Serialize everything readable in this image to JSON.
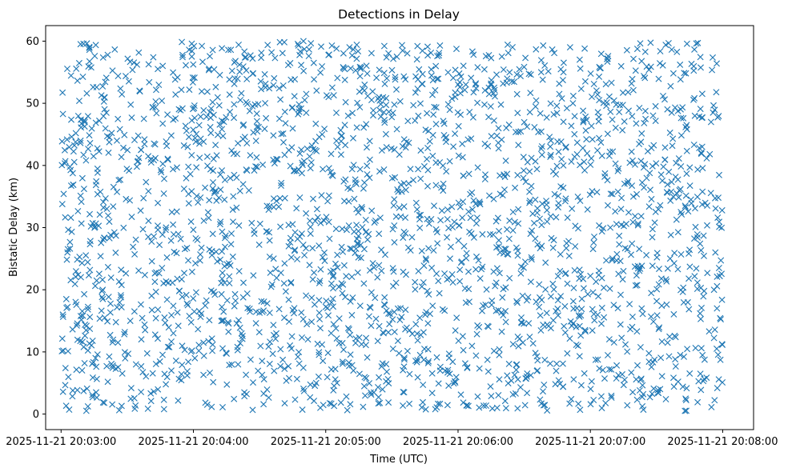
{
  "chart_data": {
    "type": "scatter",
    "title": "Detections in Delay",
    "xlabel": "Time (UTC)",
    "ylabel": "Bistatic Delay (km)",
    "x_ticks": [
      "2025-11-21 20:03:00",
      "2025-11-21 20:04:00",
      "2025-11-21 20:05:00",
      "2025-11-21 20:06:00",
      "2025-11-21 20:07:00",
      "2025-11-21 20:08:00"
    ],
    "y_ticks": [
      "0",
      "10",
      "20",
      "30",
      "40",
      "50",
      "60"
    ],
    "xlim": [
      "2025-11-21 20:02:53",
      "2025-11-21 20:08:14"
    ],
    "ylim": [
      -2.5,
      62.5
    ],
    "x_range_data": [
      "2025-11-21 20:03:00",
      "2025-11-21 20:08:00"
    ],
    "y_range_data": [
      0.5,
      60
    ],
    "marker": "x",
    "grid": false,
    "point_count_approx": 2500,
    "distribution": "uniform random detections across the full time and delay range",
    "color": "#1f77b4"
  }
}
